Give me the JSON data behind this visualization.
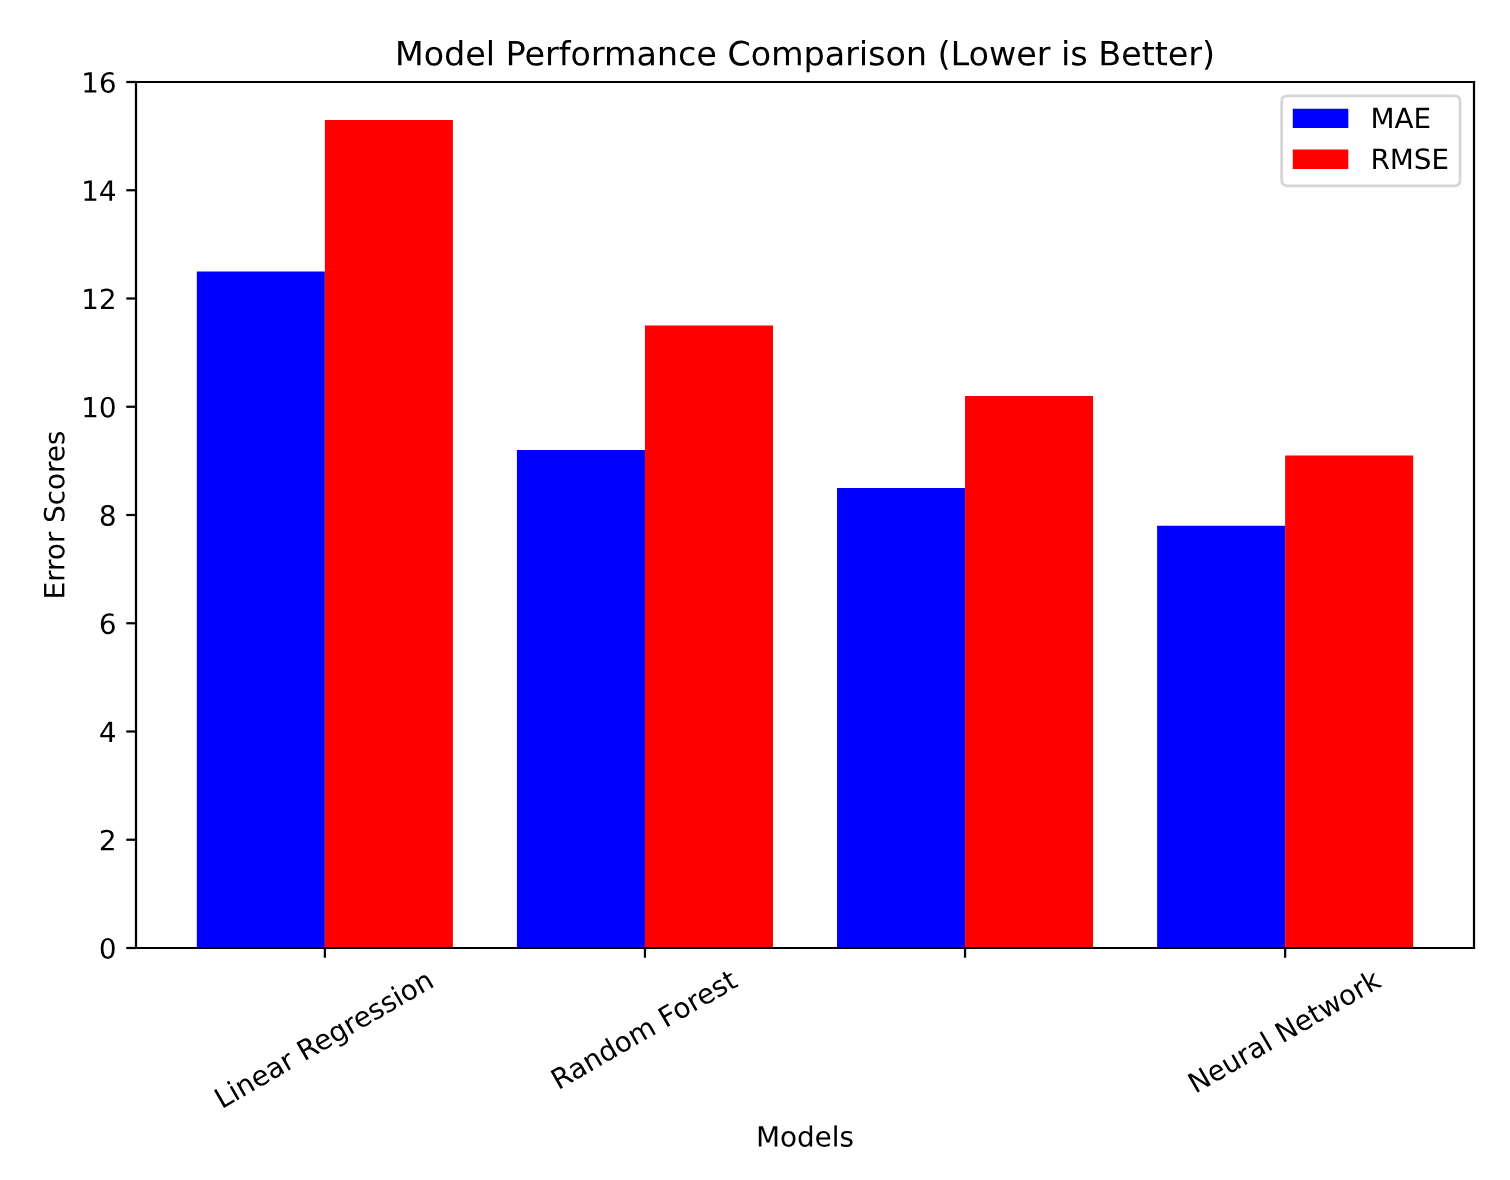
{
  "chart_data": {
    "type": "bar",
    "title": "Model Performance Comparison (Lower is Better)",
    "xlabel": "Models",
    "ylabel": "Error Scores",
    "categories": [
      "Linear Regression",
      "Random Forest",
      null,
      "Neural Network"
    ],
    "series": [
      {
        "name": "MAE",
        "color": "#0000ff",
        "values": [
          12.5,
          9.2,
          8.5,
          7.8
        ]
      },
      {
        "name": "RMSE",
        "color": "#ff0000",
        "values": [
          15.3,
          11.5,
          10.2,
          9.1
        ]
      }
    ],
    "ylim": [
      0,
      16
    ],
    "yticks": [
      0,
      2,
      4,
      6,
      8,
      10,
      12,
      14,
      16
    ],
    "legend": "top right"
  }
}
